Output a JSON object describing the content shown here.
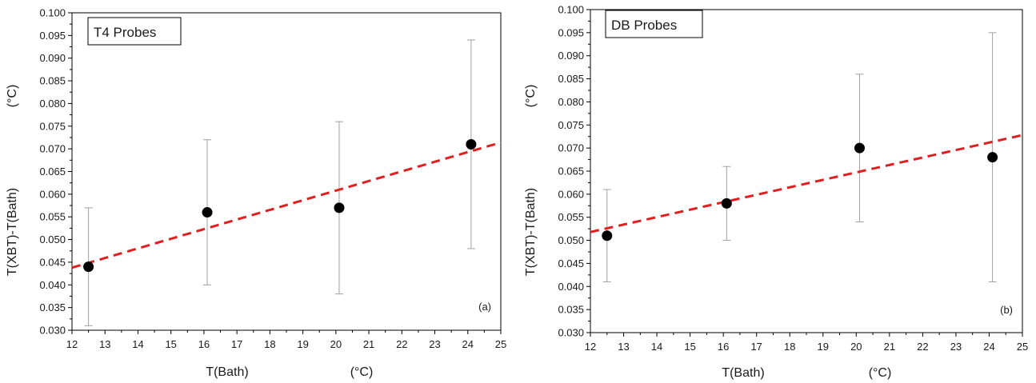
{
  "chart_data": [
    {
      "type": "scatter",
      "panel": "a",
      "title": "T4 Probes",
      "panel_tag": "(a)",
      "xlabel": "T(Bath)",
      "xunit": "(°C)",
      "ylabel": "T(XBT)-T(Bath)",
      "yunit": "(°C)",
      "xlim": [
        12,
        25
      ],
      "ylim": [
        0.03,
        0.1
      ],
      "xticks": [
        "12",
        "13",
        "14",
        "15",
        "16",
        "17",
        "18",
        "19",
        "20",
        "21",
        "22",
        "23",
        "24",
        "25"
      ],
      "yticks": [
        "0.030",
        "0.035",
        "0.040",
        "0.045",
        "0.050",
        "0.055",
        "0.060",
        "0.065",
        "0.070",
        "0.075",
        "0.080",
        "0.085",
        "0.090",
        "0.095",
        "0.100"
      ],
      "grid": false,
      "series": [
        {
          "x": [
            12.5,
            16.1,
            20.1,
            24.1
          ],
          "y": [
            0.044,
            0.056,
            0.057,
            0.071
          ],
          "err_low": [
            0.031,
            0.04,
            0.038,
            0.048
          ],
          "err_high": [
            0.057,
            0.072,
            0.076,
            0.094
          ]
        }
      ],
      "fit_line": {
        "x": [
          12,
          25
        ],
        "y": [
          0.0438,
          0.0714
        ],
        "color": "#e02020"
      },
      "marker_color": "#000000",
      "errorbar_color": "#a0a0a0"
    },
    {
      "type": "scatter",
      "panel": "b",
      "title": "DB Probes",
      "panel_tag": "(b)",
      "xlabel": "T(Bath)",
      "xunit": "(°C)",
      "ylabel": "T(XBT)-T(Bath)",
      "yunit": "(°C)",
      "xlim": [
        12,
        25
      ],
      "ylim": [
        0.03,
        0.1
      ],
      "xticks": [
        "12",
        "13",
        "14",
        "15",
        "16",
        "17",
        "18",
        "19",
        "20",
        "21",
        "22",
        "23",
        "24",
        "25"
      ],
      "yticks": [
        "0.030",
        "0.035",
        "0.040",
        "0.045",
        "0.050",
        "0.055",
        "0.060",
        "0.065",
        "0.070",
        "0.075",
        "0.080",
        "0.085",
        "0.090",
        "0.095",
        "0.100"
      ],
      "grid": false,
      "series": [
        {
          "x": [
            12.5,
            16.1,
            20.1,
            24.1
          ],
          "y": [
            0.051,
            0.058,
            0.07,
            0.068
          ],
          "err_low": [
            0.041,
            0.05,
            0.054,
            0.041
          ],
          "err_high": [
            0.061,
            0.066,
            0.086,
            0.095
          ]
        }
      ],
      "fit_line": {
        "x": [
          12,
          25
        ],
        "y": [
          0.0518,
          0.0728
        ],
        "color": "#e02020"
      },
      "marker_color": "#000000",
      "errorbar_color": "#a0a0a0"
    }
  ]
}
